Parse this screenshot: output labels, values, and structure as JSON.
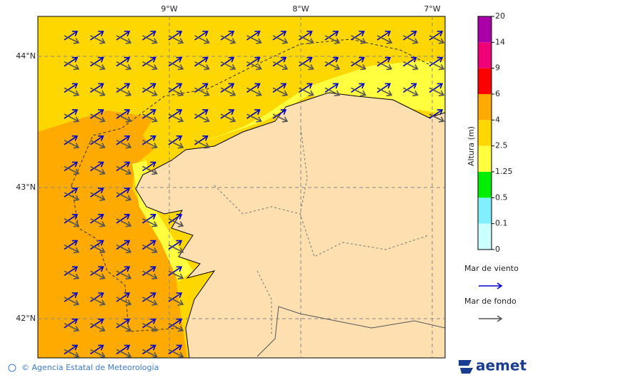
{
  "map": {
    "lon_labels": [
      "9°W",
      "8°W",
      "7°W"
    ],
    "lat_labels": [
      "44°N",
      "43°N",
      "42°N"
    ]
  },
  "colorbar": {
    "title": "Altura (m)",
    "levels": [
      0,
      0.1,
      0.5,
      1.25,
      2.5,
      4,
      6,
      9,
      14,
      20
    ],
    "colors": [
      "#ccffff",
      "#80f0ff",
      "#00ee00",
      "#ffff40",
      "#ffd700",
      "#ffaa00",
      "#ff0000",
      "#ee0077",
      "#aa00aa"
    ]
  },
  "legend": {
    "items": [
      {
        "label": "Mar de viento",
        "color": "#0000cc"
      },
      {
        "label": "Mar de fondo",
        "color": "#555555"
      }
    ]
  },
  "footer": {
    "credit": "© Agencia Estatal de Meteorología",
    "logo": "aemet"
  }
}
